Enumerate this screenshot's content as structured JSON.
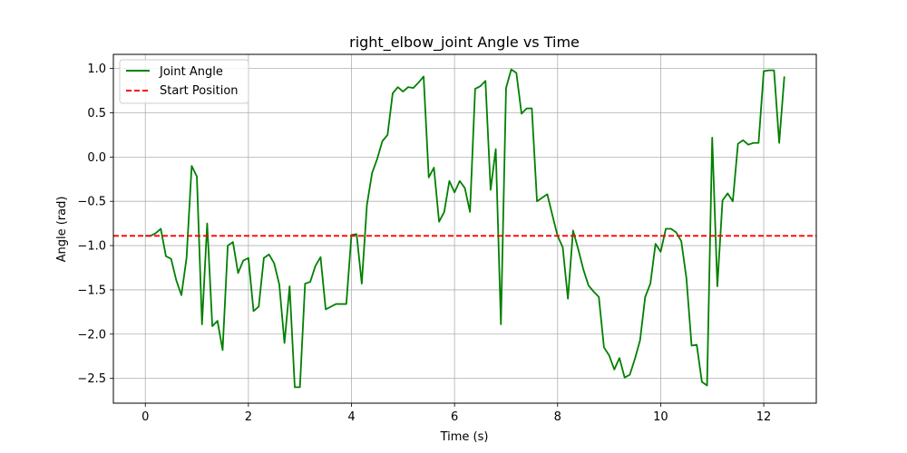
{
  "chart_data": {
    "type": "line",
    "title": "right_elbow_joint Angle vs Time",
    "xlabel": "Time (s)",
    "ylabel": "Angle (rad)",
    "xlim": [
      -0.62,
      13.02
    ],
    "ylim": [
      -2.78,
      1.16
    ],
    "xticks": [
      0,
      2,
      4,
      6,
      8,
      10,
      12
    ],
    "xtick_labels": [
      "0",
      "2",
      "4",
      "6",
      "8",
      "10",
      "12"
    ],
    "yticks": [
      -2.5,
      -2.0,
      -1.5,
      -1.0,
      -0.5,
      0.0,
      0.5,
      1.0
    ],
    "ytick_labels": [
      "−2.5",
      "−2.0",
      "−1.5",
      "−1.0",
      "−0.5",
      "0.0",
      "0.5",
      "1.0"
    ],
    "grid": true,
    "legend_position": "top-left",
    "series": [
      {
        "name": "Joint Angle",
        "color": "#008000",
        "style": "solid",
        "x": [
          0.0,
          0.1,
          0.2,
          0.3,
          0.4,
          0.5,
          0.6,
          0.7,
          0.8,
          0.9,
          1.0,
          1.1,
          1.2,
          1.3,
          1.4,
          1.5,
          1.6,
          1.7,
          1.8,
          1.9,
          2.0,
          2.1,
          2.2,
          2.3,
          2.4,
          2.5,
          2.6,
          2.7,
          2.8,
          2.9,
          3.0,
          3.1,
          3.2,
          3.3,
          3.4,
          3.5,
          3.6,
          3.7,
          3.8,
          3.9,
          4.0,
          4.1,
          4.2,
          4.3,
          4.4,
          4.5,
          4.6,
          4.7,
          4.8,
          4.9,
          5.0,
          5.1,
          5.2,
          5.3,
          5.4,
          5.5,
          5.6,
          5.7,
          5.8,
          5.9,
          6.0,
          6.1,
          6.2,
          6.3,
          6.4,
          6.5,
          6.6,
          6.7,
          6.8,
          6.9,
          7.0,
          7.1,
          7.2,
          7.3,
          7.4,
          7.5,
          7.6,
          7.7,
          7.8,
          7.9,
          8.0,
          8.1,
          8.2,
          8.3,
          8.4,
          8.5,
          8.6,
          8.7,
          8.8,
          8.9,
          9.0,
          9.1,
          9.2,
          9.3,
          9.4,
          9.5,
          9.6,
          9.7,
          9.8,
          9.9,
          10.0,
          10.1,
          10.2,
          10.3,
          10.4,
          10.5,
          10.6,
          10.7,
          10.8,
          10.9,
          11.0,
          11.1,
          11.2,
          11.3,
          11.4,
          11.5,
          11.6,
          11.7,
          11.8,
          11.9,
          12.0,
          12.1,
          12.2,
          12.3,
          12.4
        ],
        "y": [
          -0.89,
          -0.89,
          -0.86,
          -0.81,
          -1.12,
          -1.15,
          -1.39,
          -1.56,
          -1.14,
          -0.1,
          -0.22,
          -1.89,
          -0.75,
          -1.91,
          -1.85,
          -2.18,
          -1.0,
          -0.96,
          -1.31,
          -1.17,
          -1.14,
          -1.74,
          -1.69,
          -1.14,
          -1.1,
          -1.2,
          -1.44,
          -2.1,
          -1.46,
          -2.6,
          -2.6,
          -1.43,
          -1.41,
          -1.23,
          -1.13,
          -1.72,
          -1.69,
          -1.66,
          -1.66,
          -1.66,
          -0.88,
          -0.87,
          -1.43,
          -0.54,
          -0.18,
          -0.02,
          0.18,
          0.25,
          0.72,
          0.79,
          0.74,
          0.79,
          0.78,
          0.84,
          0.91,
          -0.23,
          -0.12,
          -0.73,
          -0.62,
          -0.27,
          -0.4,
          -0.27,
          -0.35,
          -0.62,
          0.77,
          0.8,
          0.86,
          -0.37,
          0.09,
          -1.89,
          0.78,
          0.99,
          0.95,
          0.49,
          0.55,
          0.55,
          -0.5,
          -0.46,
          -0.42,
          -0.66,
          -0.89,
          -1.02,
          -1.6,
          -0.83,
          -1.04,
          -1.27,
          -1.45,
          -1.52,
          -1.58,
          -2.15,
          -2.24,
          -2.4,
          -2.27,
          -2.49,
          -2.46,
          -2.28,
          -2.07,
          -1.58,
          -1.43,
          -0.98,
          -1.07,
          -0.81,
          -0.81,
          -0.85,
          -0.95,
          -1.37,
          -2.13,
          -2.12,
          -2.54,
          -2.58,
          0.22,
          -1.46,
          -0.49,
          -0.41,
          -0.5,
          0.15,
          0.19,
          0.14,
          0.16,
          0.16,
          0.97,
          0.98,
          0.98,
          0.16,
          0.91
        ]
      },
      {
        "name": "Start Position",
        "color": "#ff0000",
        "style": "dashed",
        "y_constant": -0.89
      }
    ]
  }
}
